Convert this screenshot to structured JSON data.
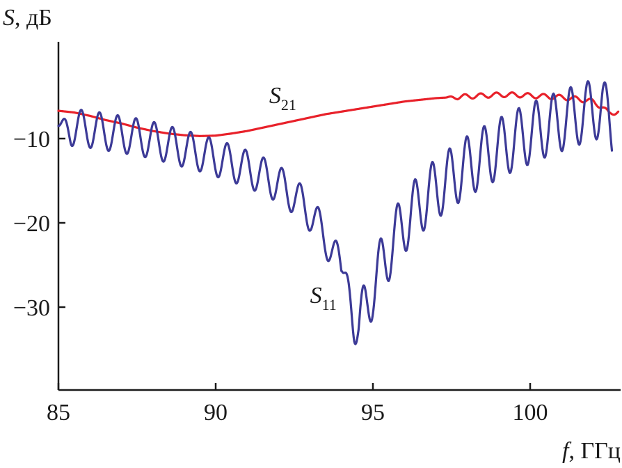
{
  "chart_data": {
    "type": "line",
    "ylabel": {
      "symbol": "S",
      "unit": ", дБ"
    },
    "xlabel": {
      "symbol": "f",
      "unit": ", ГГц"
    },
    "xlim": [
      85,
      102.8
    ],
    "ylim": [
      -39,
      0
    ],
    "x_ticks": [
      85,
      90,
      95,
      100
    ],
    "x_tick_labels": [
      "85",
      "90",
      "95",
      "100"
    ],
    "y_ticks": [
      -10,
      -20,
      -30
    ],
    "y_tick_labels": [
      "−10",
      "−20",
      "−30"
    ],
    "grid": false,
    "legend": "inline labels",
    "series": [
      {
        "name_main": "S",
        "name_sub": "21",
        "color": "#e8212a",
        "label_at": [
          91.7,
          -5.8
        ],
        "x": [
          85.0,
          85.5,
          86.0,
          86.5,
          87.0,
          87.5,
          88.0,
          88.5,
          89.0,
          89.5,
          90.0,
          90.5,
          91.0,
          91.5,
          92.0,
          92.5,
          93.0,
          93.5,
          94.0,
          94.5,
          95.0,
          95.5,
          96.0,
          96.5,
          97.0,
          97.5,
          98.0,
          98.5,
          99.0,
          99.5,
          100.0,
          100.5,
          101.0,
          101.5,
          102.0,
          102.3,
          102.5,
          102.8
        ],
        "y": [
          -6.7,
          -6.9,
          -7.3,
          -7.8,
          -8.2,
          -8.7,
          -9.1,
          -9.4,
          -9.6,
          -9.7,
          -9.65,
          -9.4,
          -9.1,
          -8.7,
          -8.3,
          -7.9,
          -7.5,
          -7.1,
          -6.8,
          -6.5,
          -6.2,
          -5.9,
          -5.6,
          -5.4,
          -5.2,
          -5.1,
          -5.0,
          -4.9,
          -4.8,
          -4.8,
          -4.9,
          -5.0,
          -5.1,
          -5.3,
          -5.6,
          -6.3,
          -7.0,
          -6.8
        ],
        "ripple": [
          [
            97.3,
            102.8,
            0.5,
            0.28
          ]
        ]
      },
      {
        "name_main": "S",
        "name_sub": "11",
        "color": "#3c3a97",
        "label_at": [
          93.0,
          -29.5
        ],
        "x": [
          85.0,
          85.5,
          86.0,
          86.5,
          87.0,
          87.5,
          88.0,
          88.5,
          89.0,
          89.5,
          90.0,
          90.5,
          91.0,
          91.5,
          92.0,
          92.5,
          93.0,
          93.5,
          94.0,
          94.3,
          94.55,
          94.8,
          95.0,
          95.3,
          95.6,
          96.0,
          96.5,
          97.0,
          97.5,
          98.0,
          98.5,
          99.0,
          99.5,
          100.0,
          100.5,
          101.0,
          101.5,
          102.0,
          102.3,
          102.6
        ],
        "y": [
          -8.5,
          -8.7,
          -8.9,
          -9.2,
          -9.5,
          -9.8,
          -10.2,
          -10.7,
          -11.2,
          -11.7,
          -12.3,
          -12.9,
          -13.6,
          -14.4,
          -15.4,
          -16.8,
          -18.8,
          -21.8,
          -25.6,
          -29.0,
          -32.5,
          -30.0,
          -27.5,
          -25.0,
          -22.5,
          -20.0,
          -17.7,
          -16.0,
          -14.6,
          -13.3,
          -12.2,
          -11.2,
          -10.2,
          -9.4,
          -8.6,
          -7.9,
          -7.2,
          -6.6,
          -6.3,
          -8.7
        ],
        "ripple": [
          [
            85.0,
            94.0,
            0.58,
            2.2
          ],
          [
            94.0,
            102.6,
            0.55,
            3.6
          ]
        ]
      }
    ]
  }
}
